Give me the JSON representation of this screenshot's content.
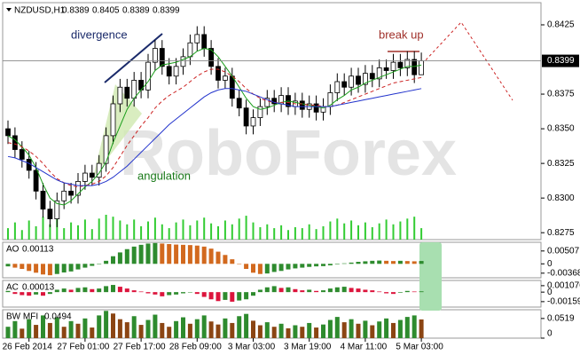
{
  "chart_data": {
    "type": "candlestick",
    "symbol": "NZDUSD,H1",
    "watermark": "RoboForex",
    "annotations": [
      "divergence",
      "break up",
      "angulation"
    ],
    "open": [
      0.835,
      0.8345,
      0.8335,
      0.8328,
      0.832,
      0.8305,
      0.8292,
      0.8285,
      0.8298,
      0.8305,
      0.8302,
      0.8312,
      0.8318,
      0.8315,
      0.8325,
      0.8345,
      0.8368,
      0.838,
      0.8372,
      0.8385,
      0.8378,
      0.8398,
      0.8408,
      0.8395,
      0.8388,
      0.8395,
      0.8402,
      0.8412,
      0.8418,
      0.8408,
      0.8395,
      0.8385,
      0.8388,
      0.8372,
      0.8365,
      0.8352,
      0.8358,
      0.8366,
      0.8372,
      0.8368,
      0.8374,
      0.8366,
      0.837,
      0.8364,
      0.8368,
      0.8362,
      0.8366,
      0.8376,
      0.8384,
      0.838,
      0.8388,
      0.8382,
      0.839,
      0.8386,
      0.8394,
      0.8392,
      0.8398,
      0.8394,
      0.84,
      0.8389
    ],
    "high": [
      0.8356,
      0.8351,
      0.8341,
      0.8334,
      0.8326,
      0.8311,
      0.8298,
      0.8304,
      0.8311,
      0.8311,
      0.8318,
      0.8324,
      0.8324,
      0.8331,
      0.8351,
      0.8374,
      0.8386,
      0.8386,
      0.8391,
      0.8391,
      0.8404,
      0.8414,
      0.8414,
      0.8401,
      0.8401,
      0.8408,
      0.8418,
      0.8424,
      0.8424,
      0.8414,
      0.8401,
      0.8394,
      0.8394,
      0.8378,
      0.8371,
      0.8364,
      0.8372,
      0.8378,
      0.8378,
      0.838,
      0.838,
      0.8376,
      0.8376,
      0.8374,
      0.8374,
      0.8372,
      0.8382,
      0.839,
      0.839,
      0.8394,
      0.8394,
      0.8396,
      0.8396,
      0.84,
      0.84,
      0.8404,
      0.8404,
      0.8406,
      0.8406,
      0.8405
    ],
    "low": [
      0.8339,
      0.8329,
      0.8322,
      0.8314,
      0.8299,
      0.8286,
      0.8279,
      0.8279,
      0.8292,
      0.8296,
      0.8296,
      0.8306,
      0.8309,
      0.8309,
      0.8319,
      0.8339,
      0.8362,
      0.8366,
      0.8366,
      0.8372,
      0.8372,
      0.8392,
      0.8389,
      0.8382,
      0.8382,
      0.8389,
      0.8396,
      0.8406,
      0.8402,
      0.8389,
      0.8379,
      0.8379,
      0.8366,
      0.8359,
      0.8346,
      0.8346,
      0.8352,
      0.836,
      0.8362,
      0.8362,
      0.836,
      0.836,
      0.8358,
      0.8358,
      0.8356,
      0.8356,
      0.836,
      0.837,
      0.8374,
      0.8374,
      0.8376,
      0.8376,
      0.838,
      0.838,
      0.8386,
      0.8386,
      0.8388,
      0.8388,
      0.8383,
      0.8389
    ],
    "close": [
      0.8345,
      0.8335,
      0.8328,
      0.832,
      0.8305,
      0.8292,
      0.8285,
      0.8298,
      0.8305,
      0.8302,
      0.8312,
      0.8318,
      0.8315,
      0.8325,
      0.8345,
      0.8368,
      0.838,
      0.8372,
      0.8385,
      0.8378,
      0.8398,
      0.8408,
      0.8395,
      0.8388,
      0.8395,
      0.8402,
      0.8412,
      0.8418,
      0.8408,
      0.8395,
      0.8385,
      0.8388,
      0.8372,
      0.8365,
      0.8352,
      0.8358,
      0.8366,
      0.8372,
      0.8368,
      0.8374,
      0.8366,
      0.837,
      0.8364,
      0.8368,
      0.8362,
      0.8366,
      0.8376,
      0.8384,
      0.838,
      0.8388,
      0.8382,
      0.839,
      0.8386,
      0.8394,
      0.8392,
      0.8398,
      0.8394,
      0.84,
      0.8389,
      0.8399
    ],
    "volume": [
      12,
      18,
      10,
      20,
      14,
      24,
      16,
      22,
      12,
      18,
      15,
      21,
      11,
      22,
      26,
      24,
      20,
      16,
      21,
      14,
      19,
      23,
      16,
      12,
      18,
      21,
      15,
      20,
      23,
      17,
      14,
      20,
      16,
      22,
      25,
      18,
      13,
      16,
      12,
      15,
      10,
      13,
      12,
      16,
      11,
      14,
      19,
      22,
      17,
      20,
      15,
      18,
      13,
      17,
      21,
      16,
      19,
      22,
      24,
      12
    ],
    "volume_color": "#33cc33",
    "moving_averages": [
      {
        "color": "#1a9e1a",
        "dash": false,
        "values": [
          0.8345,
          0.8342,
          0.8337,
          0.8331,
          0.8322,
          0.831,
          0.83,
          0.8296,
          0.8295,
          0.8298,
          0.8303,
          0.8308,
          0.8312,
          0.8318,
          0.8326,
          0.834,
          0.8352,
          0.8364,
          0.8372,
          0.8378,
          0.8384,
          0.8392,
          0.8396,
          0.8397,
          0.8398,
          0.84,
          0.8402,
          0.8406,
          0.8408,
          0.8407,
          0.8402,
          0.8395,
          0.8388,
          0.838,
          0.8372,
          0.8366,
          0.8364,
          0.8365,
          0.8367,
          0.8369,
          0.837,
          0.8369,
          0.8368,
          0.8367,
          0.8366,
          0.8365,
          0.8367,
          0.8371,
          0.8374,
          0.8378,
          0.838,
          0.8383,
          0.8385,
          0.8387,
          0.8389,
          0.8391,
          0.8393,
          0.8395,
          0.8395,
          0.8396
        ]
      },
      {
        "color": "#cc2222",
        "dash": true,
        "values": [
          0.834,
          0.8339,
          0.8337,
          0.8334,
          0.833,
          0.8325,
          0.8319,
          0.8314,
          0.8311,
          0.8309,
          0.8308,
          0.8309,
          0.831,
          0.8312,
          0.8316,
          0.8322,
          0.833,
          0.8338,
          0.8345,
          0.8352,
          0.8358,
          0.8365,
          0.837,
          0.8374,
          0.8377,
          0.838,
          0.8384,
          0.8388,
          0.8391,
          0.8393,
          0.8393,
          0.8391,
          0.8388,
          0.8384,
          0.8379,
          0.8375,
          0.8372,
          0.837,
          0.8369,
          0.8369,
          0.8369,
          0.8368,
          0.8368,
          0.8367,
          0.8367,
          0.8366,
          0.8366,
          0.8367,
          0.8369,
          0.8371,
          0.8373,
          0.8375,
          0.8377,
          0.8379,
          0.8381,
          0.8383,
          0.8384,
          0.8385,
          0.8386,
          0.8387
        ]
      },
      {
        "color": "#2233cc",
        "dash": false,
        "values": [
          0.833,
          0.8329,
          0.8327,
          0.8325,
          0.8322,
          0.8319,
          0.8316,
          0.8313,
          0.8311,
          0.831,
          0.8309,
          0.8309,
          0.8309,
          0.831,
          0.8312,
          0.8315,
          0.8319,
          0.8323,
          0.8328,
          0.8333,
          0.8338,
          0.8343,
          0.8348,
          0.8353,
          0.8357,
          0.8361,
          0.8365,
          0.8369,
          0.8373,
          0.8376,
          0.8378,
          0.8379,
          0.8379,
          0.8378,
          0.8377,
          0.8375,
          0.8373,
          0.8371,
          0.8369,
          0.8368,
          0.8367,
          0.8366,
          0.8366,
          0.8366,
          0.8366,
          0.8366,
          0.8366,
          0.8367,
          0.8368,
          0.8369,
          0.837,
          0.8371,
          0.8372,
          0.8373,
          0.8374,
          0.8375,
          0.8376,
          0.8377,
          0.8378,
          0.8379
        ]
      }
    ],
    "ylim": [
      0.827,
      0.8441
    ],
    "yticks": [
      0.8425,
      0.8375,
      {
        "value": 0.835,
        "label": "0.8350"
      },
      0.8325,
      {
        "value": 0.83,
        "label": "0.8300"
      },
      0.8275
    ],
    "xticks": [
      {
        "value": 3,
        "label": "26 Feb 2014"
      },
      {
        "value": 11,
        "label": "27 Feb 01:00"
      },
      {
        "value": 19,
        "label": "27 Feb 17:00"
      },
      {
        "value": 27,
        "label": "28 Feb 09:00"
      },
      {
        "value": 35,
        "label": "3 Mar 03:00"
      },
      {
        "value": 43,
        "label": "3 Mar 19:00"
      },
      {
        "value": 51,
        "label": "4 Mar 11:00"
      },
      {
        "value": 59,
        "label": "5 Mar 03:00"
      }
    ],
    "indicators": [
      {
        "name": "AO",
        "type": "ao",
        "up_color": "#2e8b2e",
        "down_color": "#d2691e",
        "values": [
          -0.001,
          -0.0015,
          -0.002,
          -0.0028,
          -0.0035,
          -0.0042,
          -0.0045,
          -0.004,
          -0.0034,
          -0.003,
          -0.0022,
          -0.0015,
          -0.0008,
          0.0,
          0.0012,
          0.003,
          0.0045,
          0.0058,
          0.0068,
          0.0075,
          0.008,
          0.0082,
          0.008,
          0.0078,
          0.0076,
          0.0075,
          0.0074,
          0.0072,
          0.0068,
          0.006,
          0.0048,
          0.0035,
          0.0018,
          0.0,
          -0.002,
          -0.0035,
          -0.004,
          -0.0038,
          -0.0032,
          -0.0028,
          -0.0022,
          -0.0018,
          -0.0015,
          -0.0012,
          -0.001,
          -0.0009,
          -0.0006,
          -0.0002,
          0.0002,
          0.0005,
          0.0008,
          0.001,
          0.0012,
          0.0013,
          0.0012,
          0.0011,
          0.0012,
          0.0011,
          0.001,
          0.00113
        ],
        "ylim": [
          -0.0055,
          0.0085
        ],
        "yticks": [
          0.00507,
          0,
          -0.00368
        ]
      },
      {
        "name": "AC",
        "type": "ac",
        "up_color": "#2e8b2e",
        "down_color": "#dc143c",
        "values": [
          0.0002,
          -0.0003,
          -0.0005,
          -0.0006,
          -0.0004,
          -0.0006,
          -0.0003,
          0.0004,
          0.0006,
          0.0004,
          0.0007,
          0.0008,
          0.0005,
          0.0006,
          0.001,
          0.0012,
          0.0009,
          0.0006,
          0.0003,
          0.0001,
          -0.0002,
          -0.0004,
          -0.0007,
          -0.0005,
          -0.0004,
          -0.0002,
          0.0,
          -0.0003,
          -0.0008,
          -0.0012,
          -0.0015,
          -0.0013,
          -0.0016,
          -0.0014,
          -0.0012,
          -0.0006,
          0.0004,
          0.0008,
          0.001,
          0.0007,
          0.0008,
          0.0005,
          0.0003,
          0.0004,
          0.0002,
          0.0003,
          0.0006,
          0.0008,
          0.0009,
          0.0007,
          0.0006,
          0.0004,
          0.0003,
          0.0001,
          -0.0002,
          -0.0003,
          -0.0001,
          0.0002,
          0.0001,
          0.00013
        ],
        "ylim": [
          -0.0025,
          0.00195
        ],
        "yticks": [
          0.001076,
          0,
          -0.00159
        ]
      },
      {
        "name": "BW MFI",
        "type": "mfi",
        "colors": [
          "#2e8b2e",
          "#8b4513",
          "#3355dd",
          "#ee4488"
        ],
        "values": [
          0.03,
          0.045,
          0.025,
          0.05,
          0.035,
          0.06,
          0.04,
          0.055,
          0.03,
          0.045,
          0.038,
          0.052,
          0.028,
          0.06,
          0.072,
          0.065,
          0.05,
          0.042,
          0.058,
          0.035,
          0.048,
          0.062,
          0.04,
          0.03,
          0.045,
          0.055,
          0.038,
          0.05,
          0.06,
          0.044,
          0.036,
          0.052,
          0.04,
          0.058,
          0.064,
          0.046,
          0.034,
          0.042,
          0.03,
          0.038,
          0.026,
          0.034,
          0.03,
          0.04,
          0.028,
          0.036,
          0.048,
          0.056,
          0.042,
          0.05,
          0.038,
          0.046,
          0.034,
          0.044,
          0.052,
          0.04,
          0.048,
          0.056,
          0.06,
          0.0494
        ],
        "ylim": [
          0,
          0.075
        ],
        "yticks": [
          0.0519,
          0
        ]
      }
    ]
  }
}
